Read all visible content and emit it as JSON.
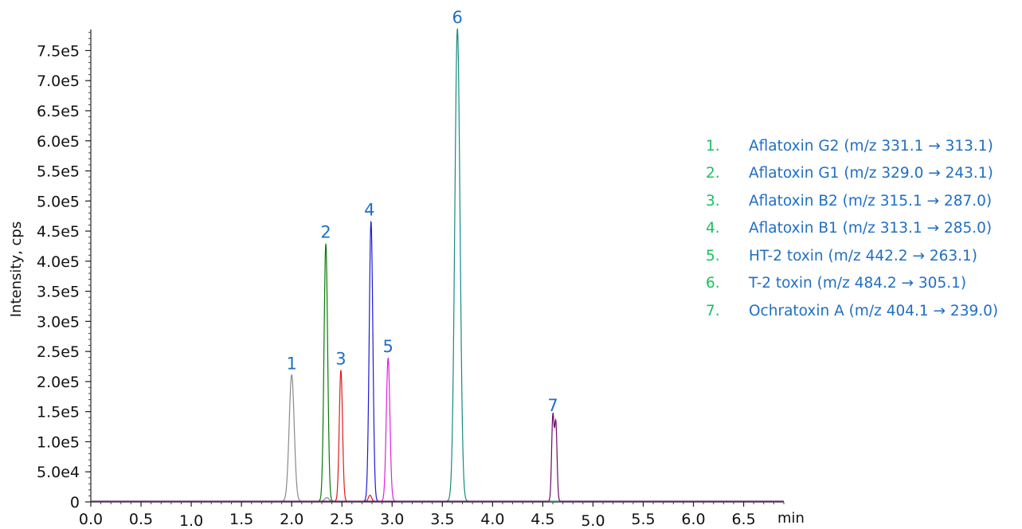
{
  "chart_data": {
    "type": "line",
    "title": "",
    "xlabel": "min",
    "ylabel": "Intensity, cps",
    "xlim": [
      0.0,
      6.9
    ],
    "ylim": [
      0,
      785000
    ],
    "grid": false,
    "legend_position": "right",
    "x_ticks": [
      "0.0",
      "0.5",
      "1.0",
      "1.5",
      "2.0",
      "2.5",
      "3.0",
      "3.5",
      "4.0",
      "4.5",
      "5.0",
      "5.5",
      "6.0",
      "6.5"
    ],
    "y_ticks": [
      "0",
      "5.0e4",
      "1.0e5",
      "1.5e5",
      "2.0e5",
      "2.5e5",
      "3.0e5",
      "3.5e5",
      "4.0e5",
      "4.5e5",
      "5.0e5",
      "5.5e5",
      "6.0e5",
      "6.5e5",
      "7.0e5",
      "7.5e5"
    ],
    "series": [
      {
        "label": "1",
        "color": "#8a8a8a",
        "peaks": [
          {
            "rt": 2.0,
            "height": 210000,
            "width": 0.025
          },
          {
            "rt": 2.35,
            "height": 6000,
            "width": 0.02
          }
        ]
      },
      {
        "label": "2",
        "color": "#0a7a0a",
        "peaks": [
          {
            "rt": 2.34,
            "height": 428000,
            "width": 0.018
          }
        ]
      },
      {
        "label": "3",
        "color": "#e01b1b",
        "peaks": [
          {
            "rt": 2.49,
            "height": 218000,
            "width": 0.016
          },
          {
            "rt": 2.78,
            "height": 10000,
            "width": 0.015
          }
        ]
      },
      {
        "label": "4",
        "color": "#1a1ad6",
        "peaks": [
          {
            "rt": 2.79,
            "height": 465000,
            "width": 0.018
          }
        ]
      },
      {
        "label": "5",
        "color": "#e020e0",
        "peaks": [
          {
            "rt": 2.96,
            "height": 238000,
            "width": 0.018
          }
        ]
      },
      {
        "label": "6",
        "color": "#168a80",
        "peaks": [
          {
            "rt": 3.65,
            "height": 785000,
            "width": 0.026
          }
        ]
      },
      {
        "label": "7",
        "color": "#6a0a6a",
        "peaks": [
          {
            "rt": 4.6,
            "height": 140000,
            "width": 0.012
          },
          {
            "rt": 4.63,
            "height": 128000,
            "width": 0.012
          }
        ]
      }
    ],
    "legend": [
      {
        "num": "1.",
        "text": "Aflatoxin G2 (m/z 331.1 → 313.1)"
      },
      {
        "num": "2.",
        "text": "Aflatoxin G1 (m/z 329.0 →  243.1)"
      },
      {
        "num": "3.",
        "text": "Aflatoxin B2 (m/z 315.1 → 287.0)"
      },
      {
        "num": "4.",
        "text": "Aflatoxin B1 (m/z 313.1 → 285.0)"
      },
      {
        "num": "5.",
        "text": "HT-2 toxin (m/z 442.2 → 263.1)"
      },
      {
        "num": "6.",
        "text": "T-2 toxin (m/z 484.2 → 305.1)"
      },
      {
        "num": "7.",
        "text": "Ochratoxin A (m/z 404.1 → 239.0)"
      }
    ]
  }
}
